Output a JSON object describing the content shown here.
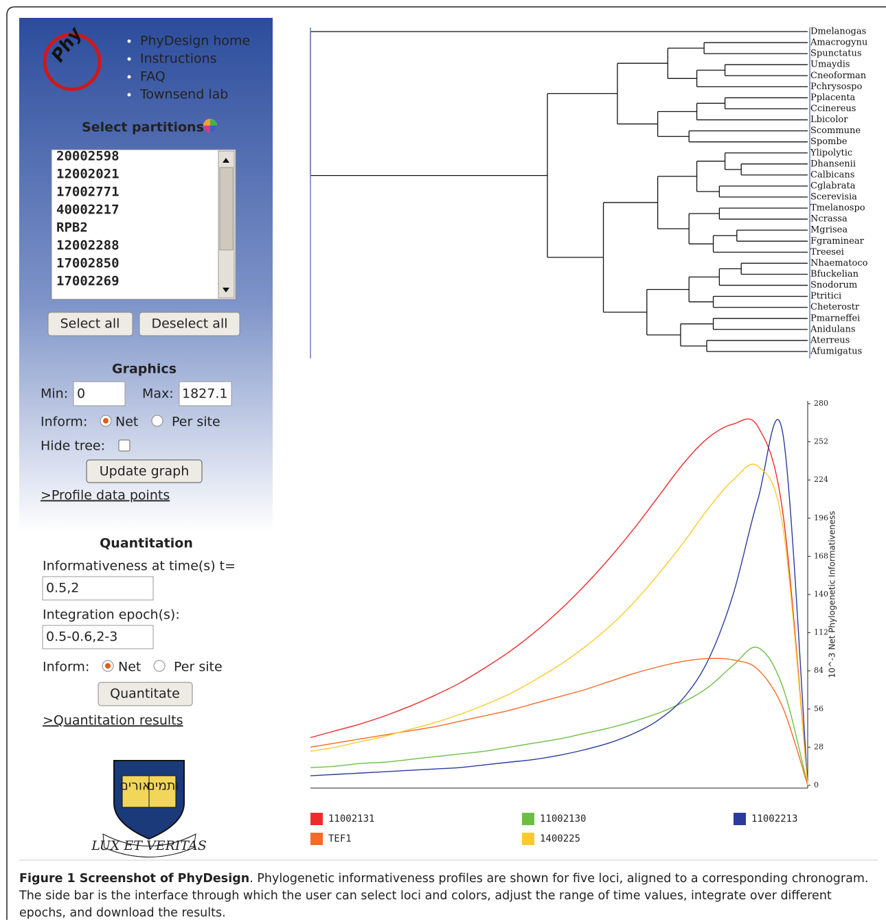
{
  "sidebar": {
    "logo": "Phy",
    "nav": [
      "PhyDesign home",
      "Instructions",
      "FAQ",
      "Townsend lab"
    ],
    "select_partitions": {
      "title": "Select partitions",
      "items": [
        {
          "label": "20002598",
          "color": "#7c99d6"
        },
        {
          "label": "12002021",
          "color": "#22338f"
        },
        {
          "label": "17002771",
          "color": "#4fbb5f"
        },
        {
          "label": "40002217",
          "color": "#9cbf3a"
        },
        {
          "label": "RPB2",
          "color": "#6e1010"
        },
        {
          "label": "12002288",
          "color": "#5a64a6"
        },
        {
          "label": "17002850",
          "color": "#c99a96"
        },
        {
          "label": "17002269",
          "color": "#f59a22"
        }
      ],
      "buttons": [
        "Select all",
        "Deselect all"
      ]
    },
    "graphics": {
      "title": "Graphics",
      "min_label": "Min:",
      "min_value": "0",
      "max_label": "Max:",
      "max_value": "1827.1",
      "inform_label": "Inform:",
      "options": [
        "Net",
        "Per site"
      ],
      "hide_tree_label": "Hide tree:",
      "button": "Update graph",
      "link": ">Profile data points"
    },
    "quantitation": {
      "title": "Quantitation",
      "time_label": "Informativeness at time(s) t=",
      "time_value": "0.5,2",
      "epoch_label": "Integration epoch(s):",
      "epoch_value": "0.5-0.6,2-3",
      "inform_label": "Inform:",
      "options": [
        "Net",
        "Per site"
      ],
      "button": "Quantitate",
      "link": ">Quantitation results"
    },
    "crest": {
      "hebrew": [
        "אורים",
        "ותמים"
      ],
      "motto": "LUX ET VERITAS"
    }
  },
  "tree": {
    "taxa": [
      "Dmelanogas",
      "Amacrogynu",
      "Spunctatus",
      "Umaydis",
      "Cneoforman",
      "Pchrysospo",
      "Pplacenta",
      "Ccinereus",
      "Lbicolor",
      "Scommune",
      "Spombe",
      "Ylipolytic",
      "Dhansenii",
      "Calbicans",
      "Cglabrata",
      "Scerevisia",
      "Tmelanospo",
      "Ncrassa",
      "Mgrisea",
      "Fgraminear",
      "Treesei",
      "Nhaematoco",
      "Bfuckelian",
      "Snodorum",
      "Ptritici",
      "Cheterostr",
      "Pmarneffei",
      "Anidulans",
      "Aterreus",
      "Afumigatus"
    ]
  },
  "chart_data": {
    "type": "line",
    "y_label": "10^-3 Net Phylogenetic Informativeness",
    "categories": [
      null,
      null,
      null,
      null,
      null,
      null,
      null,
      null,
      null,
      null,
      null,
      null,
      null,
      null,
      null,
      null,
      null,
      null,
      null,
      null,
      null
    ],
    "series": [
      {
        "name": "11002131",
        "color": "#ee2b2b",
        "values": [
          35,
          40,
          45,
          51,
          58,
          66,
          75,
          86,
          98,
          112,
          128,
          146,
          166,
          188,
          212,
          236,
          255,
          265,
          263,
          200,
          0
        ]
      },
      {
        "name": "11002130",
        "color": "#6cbf45",
        "values": [
          13,
          14,
          16,
          17,
          19,
          21,
          23,
          25,
          28,
          31,
          34,
          38,
          42,
          47,
          53,
          61,
          72,
          88,
          101,
          72,
          0
        ]
      },
      {
        "name": "11002213",
        "color": "#2a3a9e",
        "values": [
          7,
          8,
          9,
          10,
          11,
          12,
          13,
          15,
          17,
          19,
          22,
          26,
          31,
          38,
          48,
          64,
          92,
          140,
          210,
          258,
          0
        ]
      },
      {
        "name": "TEF1",
        "color": "#f96a25",
        "values": [
          28,
          31,
          34,
          37,
          40,
          43,
          47,
          51,
          55,
          60,
          65,
          70,
          76,
          82,
          87,
          91,
          93,
          92,
          85,
          57,
          0
        ]
      },
      {
        "name": "1400225",
        "color": "#fdc92e",
        "values": [
          25,
          28,
          32,
          36,
          41,
          46,
          52,
          59,
          67,
          77,
          88,
          101,
          116,
          134,
          155,
          178,
          203,
          224,
          234,
          190,
          0
        ]
      }
    ],
    "ylim": [
      0,
      280
    ],
    "yticks": [
      0,
      28,
      56,
      84,
      112,
      140,
      168,
      196,
      224,
      252,
      280
    ]
  },
  "caption": {
    "label": "Figure 1 Screenshot of PhyDesign",
    "text": ". Phylogenetic informativeness profiles are shown for five loci, aligned to a corresponding chronogram. The side bar is the interface through which the user can select loci and colors, adjust the range of time values, integrate over different epochs, and download the results."
  }
}
